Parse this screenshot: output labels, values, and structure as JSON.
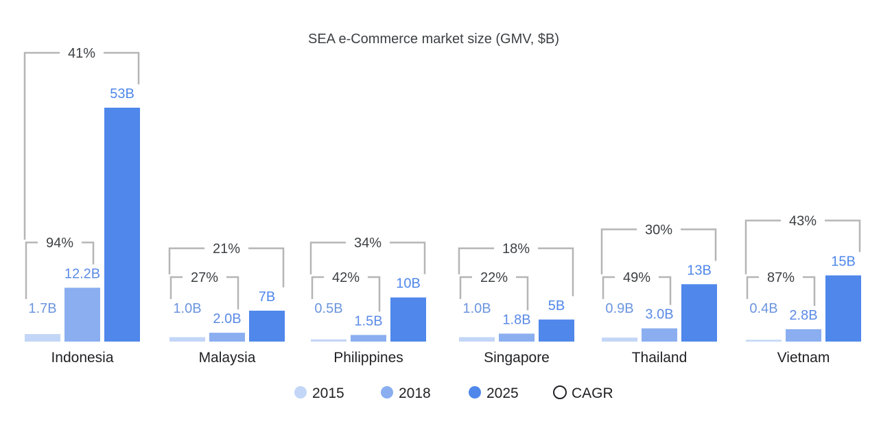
{
  "colors": {
    "2015": "#c3d6f7",
    "2018": "#8aaef0",
    "2025": "#4f87eb",
    "label2015": "#6b95de",
    "label2018": "#5b8ae6",
    "label2025": "#4f87eb",
    "bracket": "#b5b5b5",
    "cagr_marker": "#202124"
  },
  "chart_data": {
    "type": "bar",
    "title": "SEA e-Commerce market size (GMV, $B)",
    "categories": [
      "Indonesia",
      "Malaysia",
      "Philippines",
      "Singapore",
      "Thailand",
      "Vietnam"
    ],
    "series": [
      {
        "name": "2015",
        "values": [
          1.7,
          1.0,
          0.5,
          1.0,
          0.9,
          0.4
        ],
        "labels": [
          "1.7B",
          "1.0B",
          "0.5B",
          "1.0B",
          "0.9B",
          "0.4B"
        ]
      },
      {
        "name": "2018",
        "values": [
          12.2,
          2.0,
          1.5,
          1.8,
          3.0,
          2.8
        ],
        "labels": [
          "12.2B",
          "2.0B",
          "1.5B",
          "1.8B",
          "3.0B",
          "2.8B"
        ]
      },
      {
        "name": "2025",
        "values": [
          53,
          7,
          10,
          5,
          13,
          15
        ],
        "labels": [
          "53B",
          "7B",
          "10B",
          "5B",
          "13B",
          "15B"
        ]
      }
    ],
    "cagr_2015_2018": [
      "94%",
      "27%",
      "42%",
      "22%",
      "49%",
      "87%"
    ],
    "cagr_2015_2025": [
      "41%",
      "21%",
      "34%",
      "18%",
      "30%",
      "43%"
    ],
    "legend": [
      "2015",
      "2018",
      "2025",
      "CAGR"
    ],
    "legend_position": "bottom",
    "grid": false
  }
}
